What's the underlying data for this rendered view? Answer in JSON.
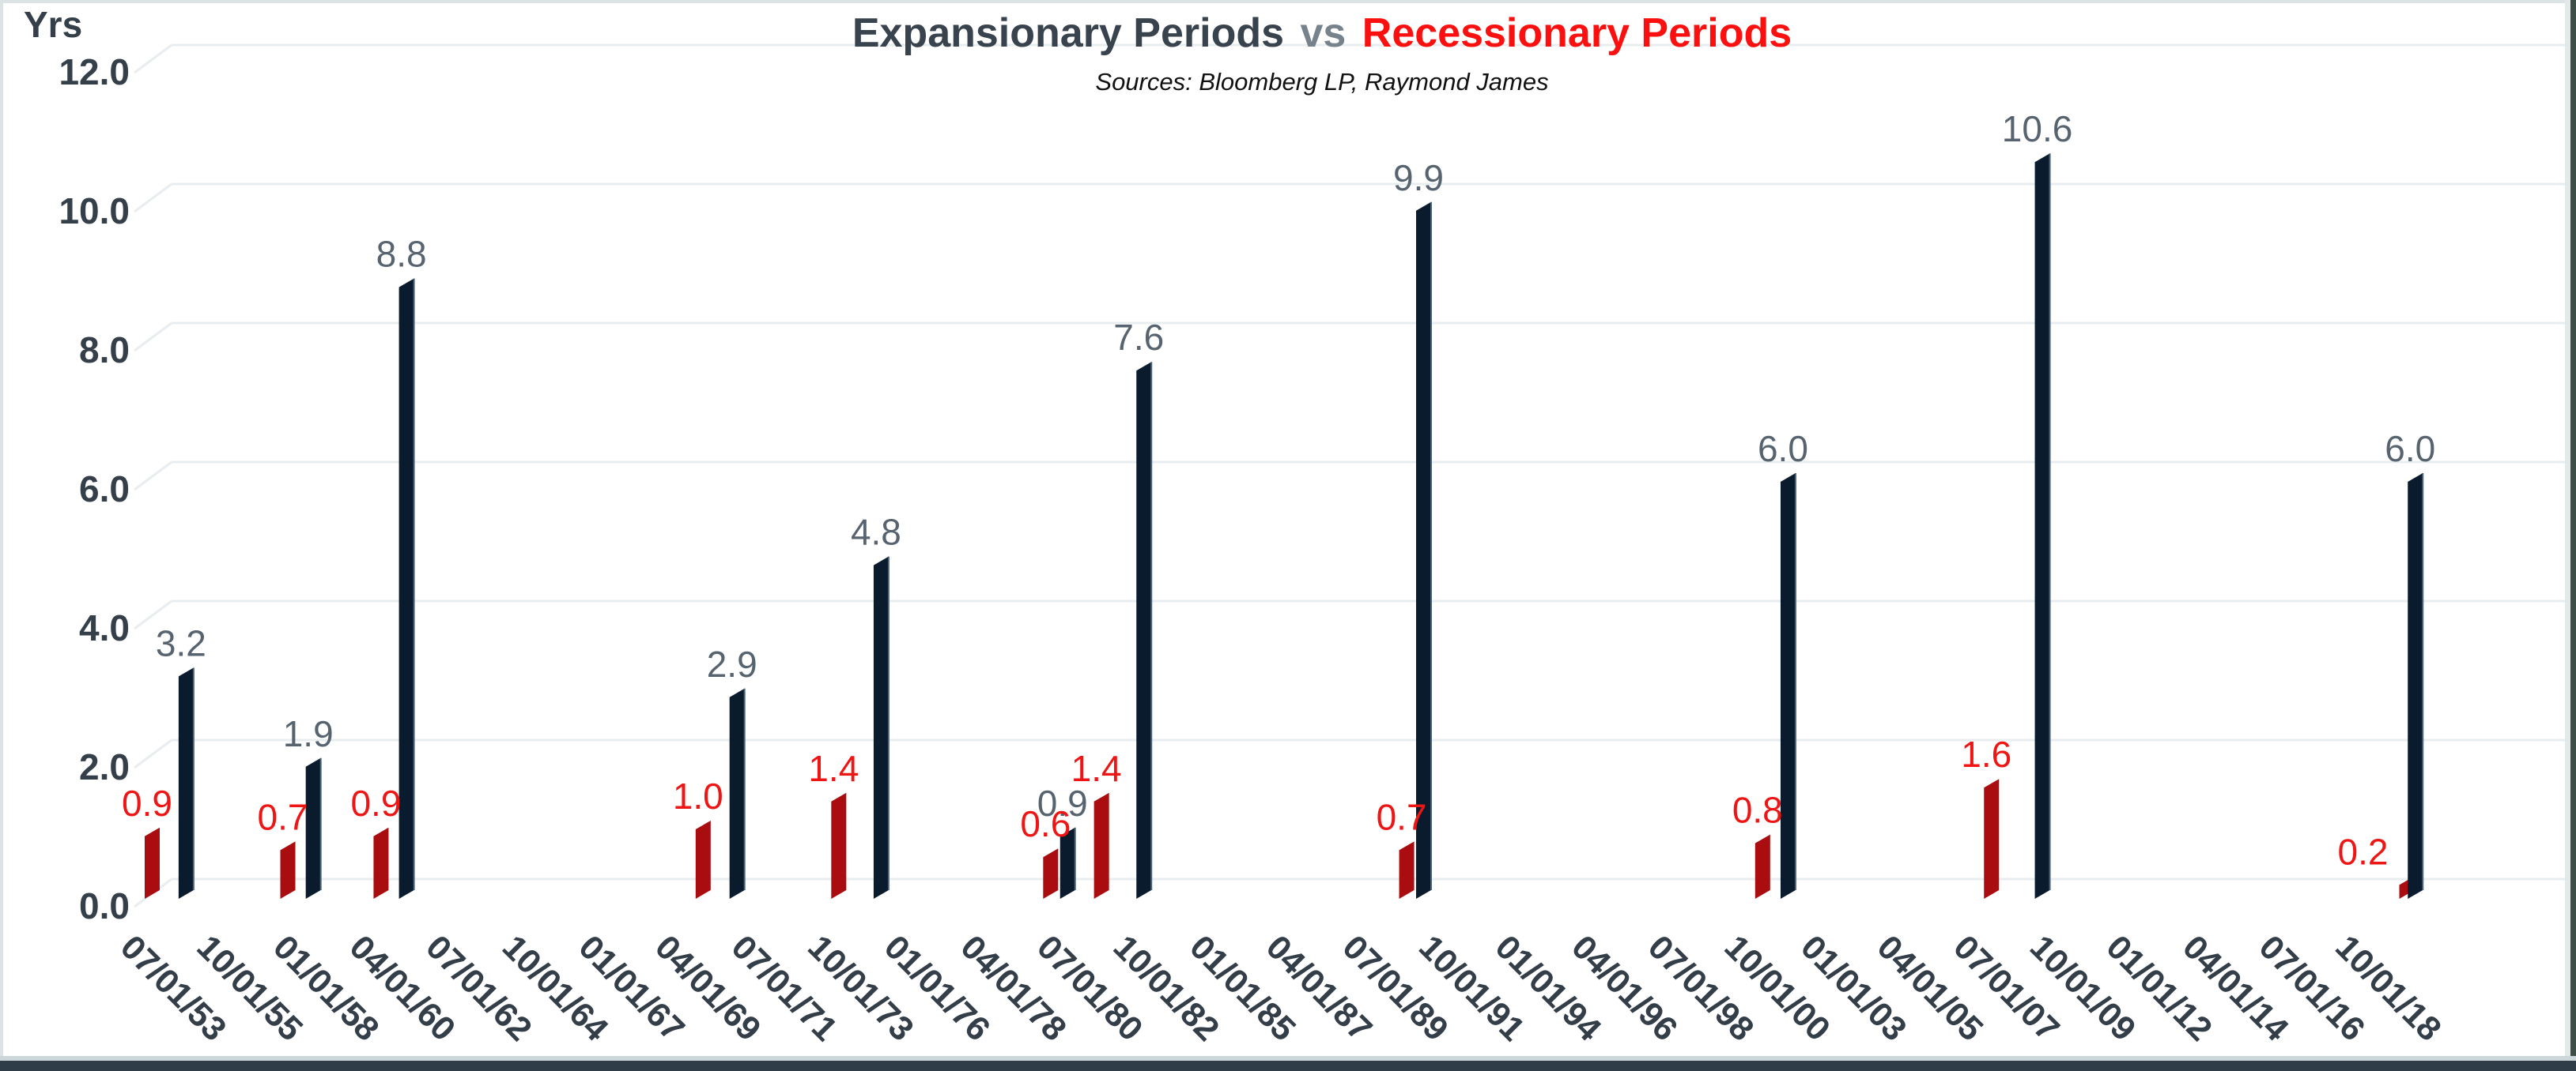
{
  "header": {
    "title_left": "Expansionary Periods",
    "title_vs": "vs",
    "title_right": "Recessionary Periods",
    "subtitle": "Sources: Bloomberg LP, Raymond James"
  },
  "colors": {
    "background": "#ffffff",
    "title_dark": "#39434e",
    "title_vs": "#76828c",
    "title_red": "#fb0f0f",
    "subtitle": "#111111",
    "gridline": "#e8edef",
    "axis_text": "#353f49",
    "date_text": "#333e48",
    "border_light": "#dce3e5",
    "border_right_light": "#e3e8e9",
    "border_right_dark": "#3e4f48",
    "border_bottom_light": "#ccd7d9",
    "border_bottom_dark": "#2e3d48"
  },
  "chart_data": {
    "type": "bar",
    "style": "3d-clustered-column",
    "title": "Expansionary Periods vs Recessionary Periods",
    "subtitle": "Sources: Bloomberg LP, Raymond James",
    "ylabel": "Yrs",
    "unit": "years",
    "ylim": [
      0,
      12
    ],
    "ytick_step": 2,
    "grid": true,
    "legend": "none",
    "q_unit": "quarters since 07/01/1953",
    "quarters_per_category": 9,
    "x_categories": [
      "07/01/53",
      "10/01/55",
      "01/01/58",
      "04/01/60",
      "07/01/62",
      "10/01/64",
      "01/01/67",
      "04/01/69",
      "07/01/71",
      "10/01/73",
      "01/01/76",
      "04/01/78",
      "07/01/80",
      "10/01/82",
      "01/01/85",
      "04/01/87",
      "07/01/89",
      "10/01/91",
      "01/01/94",
      "04/01/96",
      "07/01/98",
      "10/01/00",
      "01/01/03",
      "04/01/05",
      "07/01/07",
      "10/01/09",
      "01/01/12",
      "04/01/14",
      "07/01/16",
      "10/01/18"
    ],
    "series": [
      {
        "name": "Recessionary Periods",
        "color": "#a90d10",
        "label_color": "#ee1515",
        "edge_color": null,
        "points": [
          {
            "q": 0,
            "value": 0.9
          },
          {
            "q": 16,
            "value": 0.7
          },
          {
            "q": 27,
            "value": 0.9
          },
          {
            "q": 65,
            "value": 1.0
          },
          {
            "q": 81,
            "value": 1.4
          },
          {
            "q": 106,
            "value": 0.6
          },
          {
            "q": 112,
            "value": 1.4
          },
          {
            "q": 148,
            "value": 0.7
          },
          {
            "q": 190,
            "value": 0.8
          },
          {
            "q": 217,
            "value": 1.6
          },
          {
            "q": 266,
            "value": 0.2,
            "label_dx": -49
          }
        ]
      },
      {
        "name": "Expansionary Periods",
        "color": "#0b1b2e",
        "label_color": "#57646f",
        "edge_color": "#4d6478",
        "points": [
          {
            "q": 4,
            "value": 3.2
          },
          {
            "q": 19,
            "value": 1.9
          },
          {
            "q": 30,
            "value": 8.8
          },
          {
            "q": 69,
            "value": 2.9
          },
          {
            "q": 86,
            "value": 4.8
          },
          {
            "q": 108,
            "value": 0.9
          },
          {
            "q": 117,
            "value": 7.6
          },
          {
            "q": 150,
            "value": 9.9
          },
          {
            "q": 193,
            "value": 6.0
          },
          {
            "q": 223,
            "value": 10.6
          },
          {
            "q": 267,
            "value": 6.0
          }
        ]
      }
    ]
  }
}
